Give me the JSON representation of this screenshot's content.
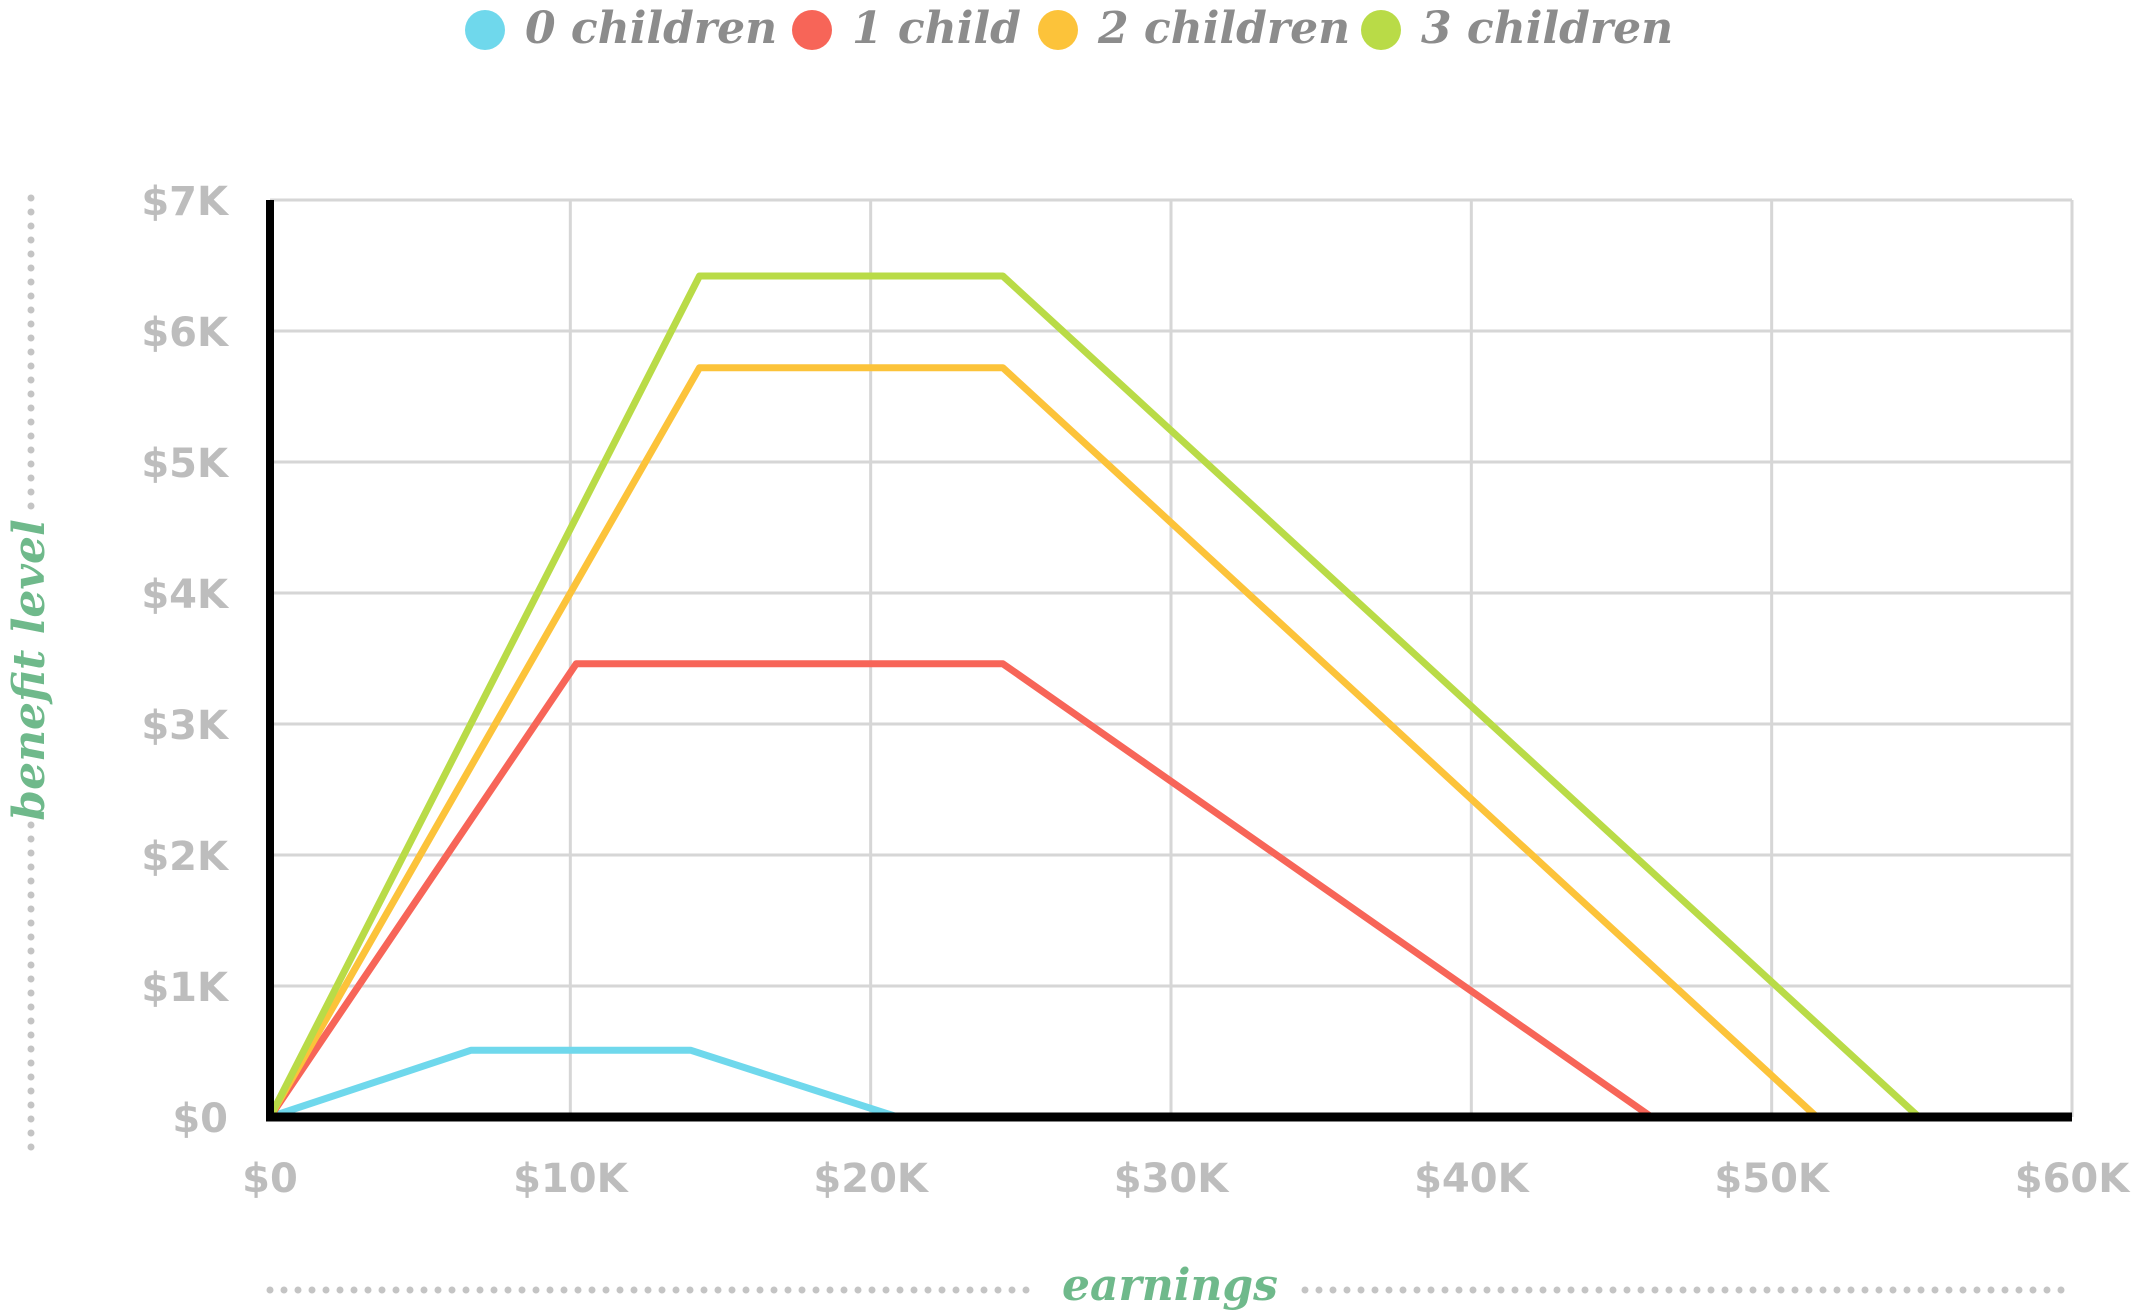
{
  "chart_data": {
    "type": "line",
    "xlabel": "earnings",
    "ylabel": "benefit level",
    "xlim": [
      0,
      60000
    ],
    "ylim": [
      0,
      7000
    ],
    "x_ticks": [
      0,
      10000,
      20000,
      30000,
      40000,
      50000,
      60000
    ],
    "x_tick_labels": [
      "$0",
      "$10K",
      "$20K",
      "$30K",
      "$40K",
      "$50K",
      "$60K"
    ],
    "y_ticks": [
      0,
      1000,
      2000,
      3000,
      4000,
      5000,
      6000,
      7000
    ],
    "y_tick_labels": [
      "$0",
      "$1K",
      "$2K",
      "$3K",
      "$4K",
      "$5K",
      "$6K",
      "$7K"
    ],
    "grid": true,
    "legend_position": "top",
    "series": [
      {
        "name": "0 children",
        "color": "#6fd8ec",
        "points": [
          [
            0,
            0
          ],
          [
            6700,
            510
          ],
          [
            14000,
            510
          ],
          [
            20900,
            0
          ]
        ]
      },
      {
        "name": "1 child",
        "color": "#f76558",
        "points": [
          [
            0,
            0
          ],
          [
            10200,
            3460
          ],
          [
            24400,
            3460
          ],
          [
            46000,
            0
          ]
        ]
      },
      {
        "name": "2 children",
        "color": "#fcc33a",
        "points": [
          [
            0,
            0
          ],
          [
            14300,
            5720
          ],
          [
            24400,
            5720
          ],
          [
            51500,
            0
          ]
        ]
      },
      {
        "name": "3 children",
        "color": "#b9db47",
        "points": [
          [
            0,
            0
          ],
          [
            14300,
            6420
          ],
          [
            24400,
            6420
          ],
          [
            54900,
            0
          ]
        ]
      }
    ]
  }
}
